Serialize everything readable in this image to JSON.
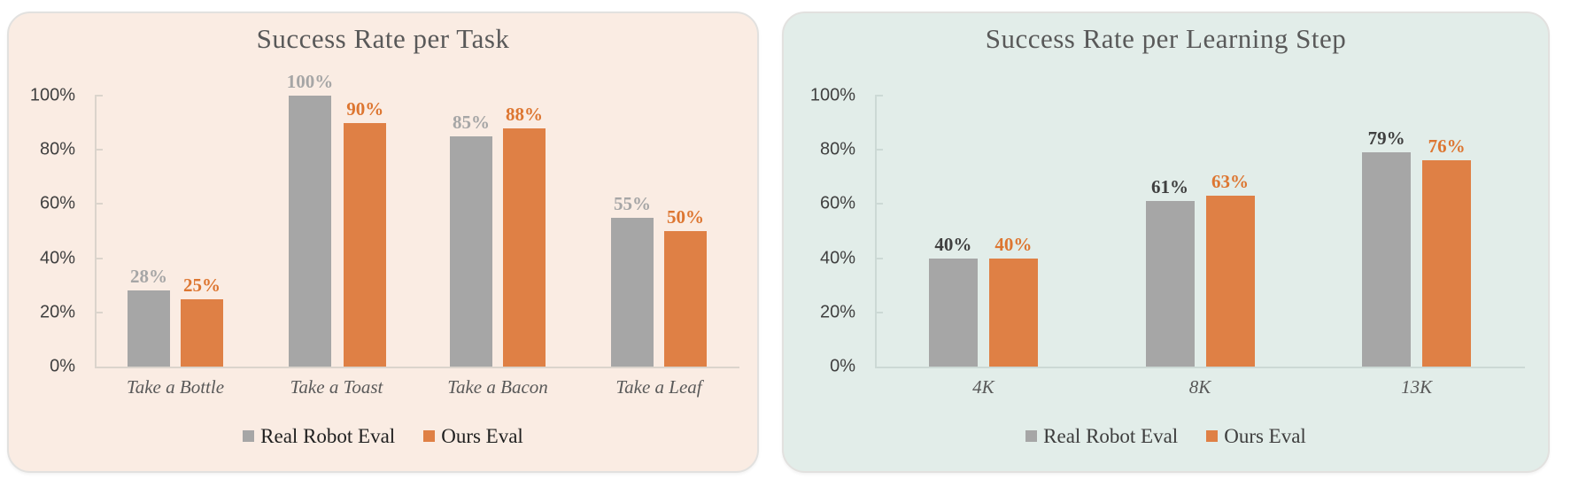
{
  "figure": {
    "background": "#ffffff"
  },
  "charts": [
    {
      "title": "Success Rate per Task",
      "card_color": "#faece3",
      "axis_color": "#dbd4cc",
      "title_color": "#595959",
      "tick_label_color": "#404040",
      "category_label_color": "#595959",
      "legend_text_color": "#1f1f1f",
      "chart_data": {
        "type": "bar",
        "title": "Success Rate per Task",
        "categories": [
          "Take a Bottle",
          "Take a Toast",
          "Take a Bacon",
          "Take a Leaf"
        ],
        "series": [
          {
            "name": "Real Robot Eval",
            "color": "#a6a6a6",
            "label_color": "#a6a6a6",
            "values": [
              28,
              100,
              85,
              55
            ],
            "labels": [
              "28%",
              "100%",
              "85%",
              "55%"
            ]
          },
          {
            "name": "Ours Eval",
            "color": "#df8045",
            "label_color": "#dd7631",
            "values": [
              25,
              90,
              88,
              50
            ],
            "labels": [
              "25%",
              "90%",
              "88%",
              "50%"
            ]
          }
        ],
        "y_ticks": [
          {
            "value": 100,
            "label": "100%"
          },
          {
            "value": 80,
            "label": "80%"
          },
          {
            "value": 60,
            "label": "60%"
          },
          {
            "value": 40,
            "label": "40%"
          },
          {
            "value": 20,
            "label": "20%"
          },
          {
            "value": 0,
            "label": "0%"
          }
        ],
        "ylim": [
          0,
          100
        ],
        "grid": false,
        "legend_position": "bottom"
      }
    },
    {
      "title": "Success Rate per Learning Step",
      "card_color": "#e2ede9",
      "axis_color": "#ccd9d5",
      "title_color": "#595959",
      "tick_label_color": "#404040",
      "category_label_color": "#595959",
      "legend_text_color": "#3d3d3d",
      "chart_data": {
        "type": "bar",
        "title": "Success Rate per Learning Step",
        "categories": [
          "4K",
          "8K",
          "13K"
        ],
        "series": [
          {
            "name": "Real Robot Eval",
            "color": "#a6a6a6",
            "label_color": "#3f3f3f",
            "values": [
              40,
              61,
              79
            ],
            "labels": [
              "40%",
              "61%",
              "79%"
            ]
          },
          {
            "name": "Ours Eval",
            "color": "#df8045",
            "label_color": "#dd7631",
            "values": [
              40,
              63,
              76
            ],
            "labels": [
              "40%",
              "63%",
              "76%"
            ]
          }
        ],
        "y_ticks": [
          {
            "value": 100,
            "label": "100%"
          },
          {
            "value": 80,
            "label": "80%"
          },
          {
            "value": 60,
            "label": "60%"
          },
          {
            "value": 40,
            "label": "40%"
          },
          {
            "value": 20,
            "label": "20%"
          },
          {
            "value": 0,
            "label": "0%"
          }
        ],
        "ylim": [
          0,
          100
        ],
        "grid": false,
        "legend_position": "bottom"
      }
    }
  ]
}
